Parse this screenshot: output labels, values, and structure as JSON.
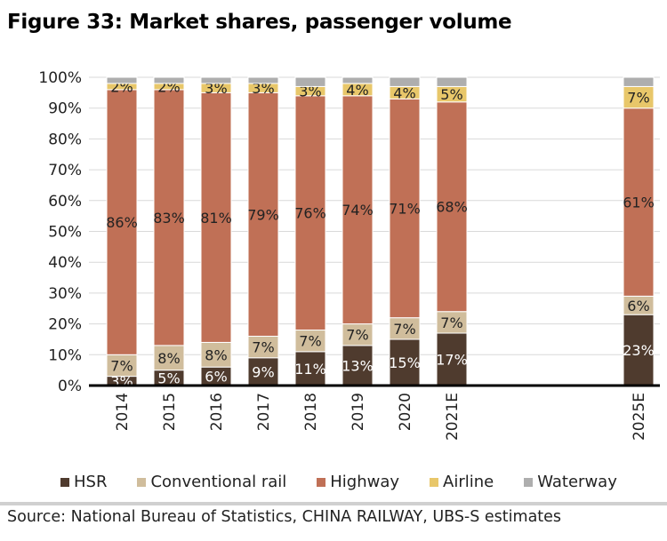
{
  "title": "Figure 33: Market shares, passenger volume",
  "source": "Source:  National Bureau of Statistics, CHINA RAILWAY, UBS-S estimates",
  "colors": {
    "HSR": "#4f3b2e",
    "Conventional rail": "#d0bd9c",
    "Highway": "#c07056",
    "Airline": "#e8c76a",
    "Waterway": "#aeaeae"
  },
  "chart_data": {
    "type": "bar",
    "stacked": true,
    "title": "Figure 33: Market shares, passenger volume",
    "xlabel": "",
    "ylabel": "",
    "ylim": [
      0,
      100
    ],
    "yticks": [
      "0%",
      "10%",
      "20%",
      "30%",
      "40%",
      "50%",
      "60%",
      "70%",
      "80%",
      "90%",
      "100%"
    ],
    "grid": true,
    "legend_position": "bottom",
    "categories": [
      "2014",
      "2015",
      "2016",
      "2017",
      "2018",
      "2019",
      "2020",
      "2021E",
      "2025E"
    ],
    "series": [
      {
        "name": "HSR",
        "values": [
          3,
          5,
          6,
          9,
          11,
          13,
          15,
          17,
          23
        ],
        "labels": [
          "3%",
          "5%",
          "6%",
          "9%",
          "11%",
          "13%",
          "15%",
          "17%",
          "23%"
        ]
      },
      {
        "name": "Conventional rail",
        "values": [
          7,
          8,
          8,
          7,
          7,
          7,
          7,
          7,
          6
        ],
        "labels": [
          "7%",
          "8%",
          "8%",
          "7%",
          "7%",
          "7%",
          "7%",
          "7%",
          "6%"
        ]
      },
      {
        "name": "Highway",
        "values": [
          86,
          83,
          81,
          79,
          76,
          74,
          71,
          68,
          61
        ],
        "labels": [
          "86%",
          "83%",
          "81%",
          "79%",
          "76%",
          "74%",
          "71%",
          "68%",
          "61%"
        ]
      },
      {
        "name": "Airline",
        "values": [
          2,
          2,
          3,
          3,
          3,
          4,
          4,
          5,
          7
        ],
        "labels": [
          "2%",
          "2%",
          "3%",
          "3%",
          "3%",
          "4%",
          "4%",
          "5%",
          "7%"
        ]
      },
      {
        "name": "Waterway",
        "values": [
          2,
          2,
          2,
          2,
          3,
          2,
          3,
          3,
          3
        ],
        "labels": [
          "",
          "",
          "",
          "",
          "",
          "",
          "",
          "",
          ""
        ]
      }
    ]
  }
}
